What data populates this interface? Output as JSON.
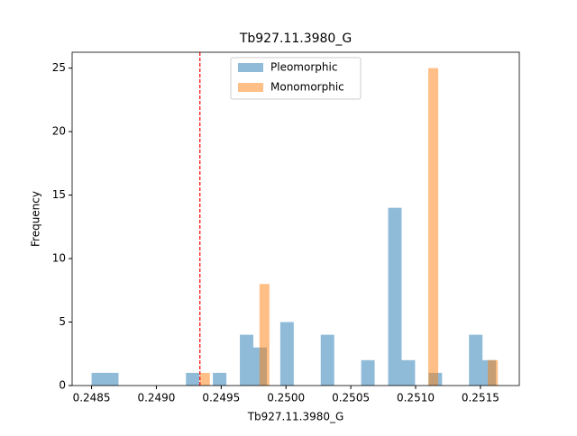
{
  "chart_data": {
    "type": "histogram",
    "title": "Tb927.11.3980_G",
    "xlabel": "Tb927.11.3980_G",
    "ylabel": "Frequency",
    "series": [
      {
        "name": "Pleomorphic",
        "color": "#1f77b4",
        "bins": [
          0.2485,
          0.248604,
          0.248708,
          0.248812,
          0.248916,
          0.24902,
          0.249124,
          0.249228,
          0.249332,
          0.249436,
          0.24954,
          0.249644,
          0.249748,
          0.249852,
          0.249956,
          0.25006,
          0.250164,
          0.250268,
          0.250372,
          0.250476,
          0.25058,
          0.250684,
          0.250788,
          0.250892,
          0.250996,
          0.2511,
          0.251204,
          0.251308,
          0.251412,
          0.251516,
          0.25162
        ],
        "values": [
          1,
          1,
          0,
          0,
          0,
          0,
          0,
          1,
          0,
          1,
          0,
          4,
          3,
          0,
          5,
          0,
          0,
          4,
          0,
          0,
          2,
          0,
          14,
          2,
          0,
          1,
          0,
          0,
          4,
          2
        ]
      },
      {
        "name": "Monomorphic",
        "color": "#ff7f0e",
        "bins": [
          0.249336,
          0.2494126,
          0.2494892,
          0.2495658,
          0.2496424,
          0.249719,
          0.2497956,
          0.2498722,
          0.2499488,
          0.2500254,
          0.250102,
          0.2501786,
          0.2502552,
          0.2503318,
          0.2504084,
          0.250485,
          0.2505616,
          0.2506382,
          0.2507148,
          0.2507914,
          0.250868,
          0.2509446,
          0.2510212,
          0.2510978,
          0.2511744,
          0.251251,
          0.2513276,
          0.2514042,
          0.2514808,
          0.2515574,
          0.251634
        ],
        "values": [
          1,
          0,
          0,
          0,
          0,
          0,
          8,
          0,
          0,
          0,
          0,
          0,
          0,
          0,
          0,
          0,
          0,
          0,
          0,
          0,
          0,
          0,
          0,
          25,
          0,
          0,
          0,
          0,
          0,
          2
        ]
      }
    ],
    "vline": {
      "x": 0.249336,
      "color": "#ff0000"
    },
    "xlim": [
      0.24835,
      0.2518
    ],
    "xticks": [
      0.2485,
      {
        "value": 0.249,
        "label": "0.2490"
      },
      0.2495,
      {
        "value": 0.25,
        "label": "0.2500"
      },
      0.2505,
      {
        "value": 0.251,
        "label": "0.2510"
      },
      0.2515
    ],
    "ylim": [
      0,
      26.25
    ],
    "yticks": [
      0,
      5,
      10,
      15,
      20,
      25
    ],
    "legend": "upper center",
    "opacity": 0.5
  }
}
